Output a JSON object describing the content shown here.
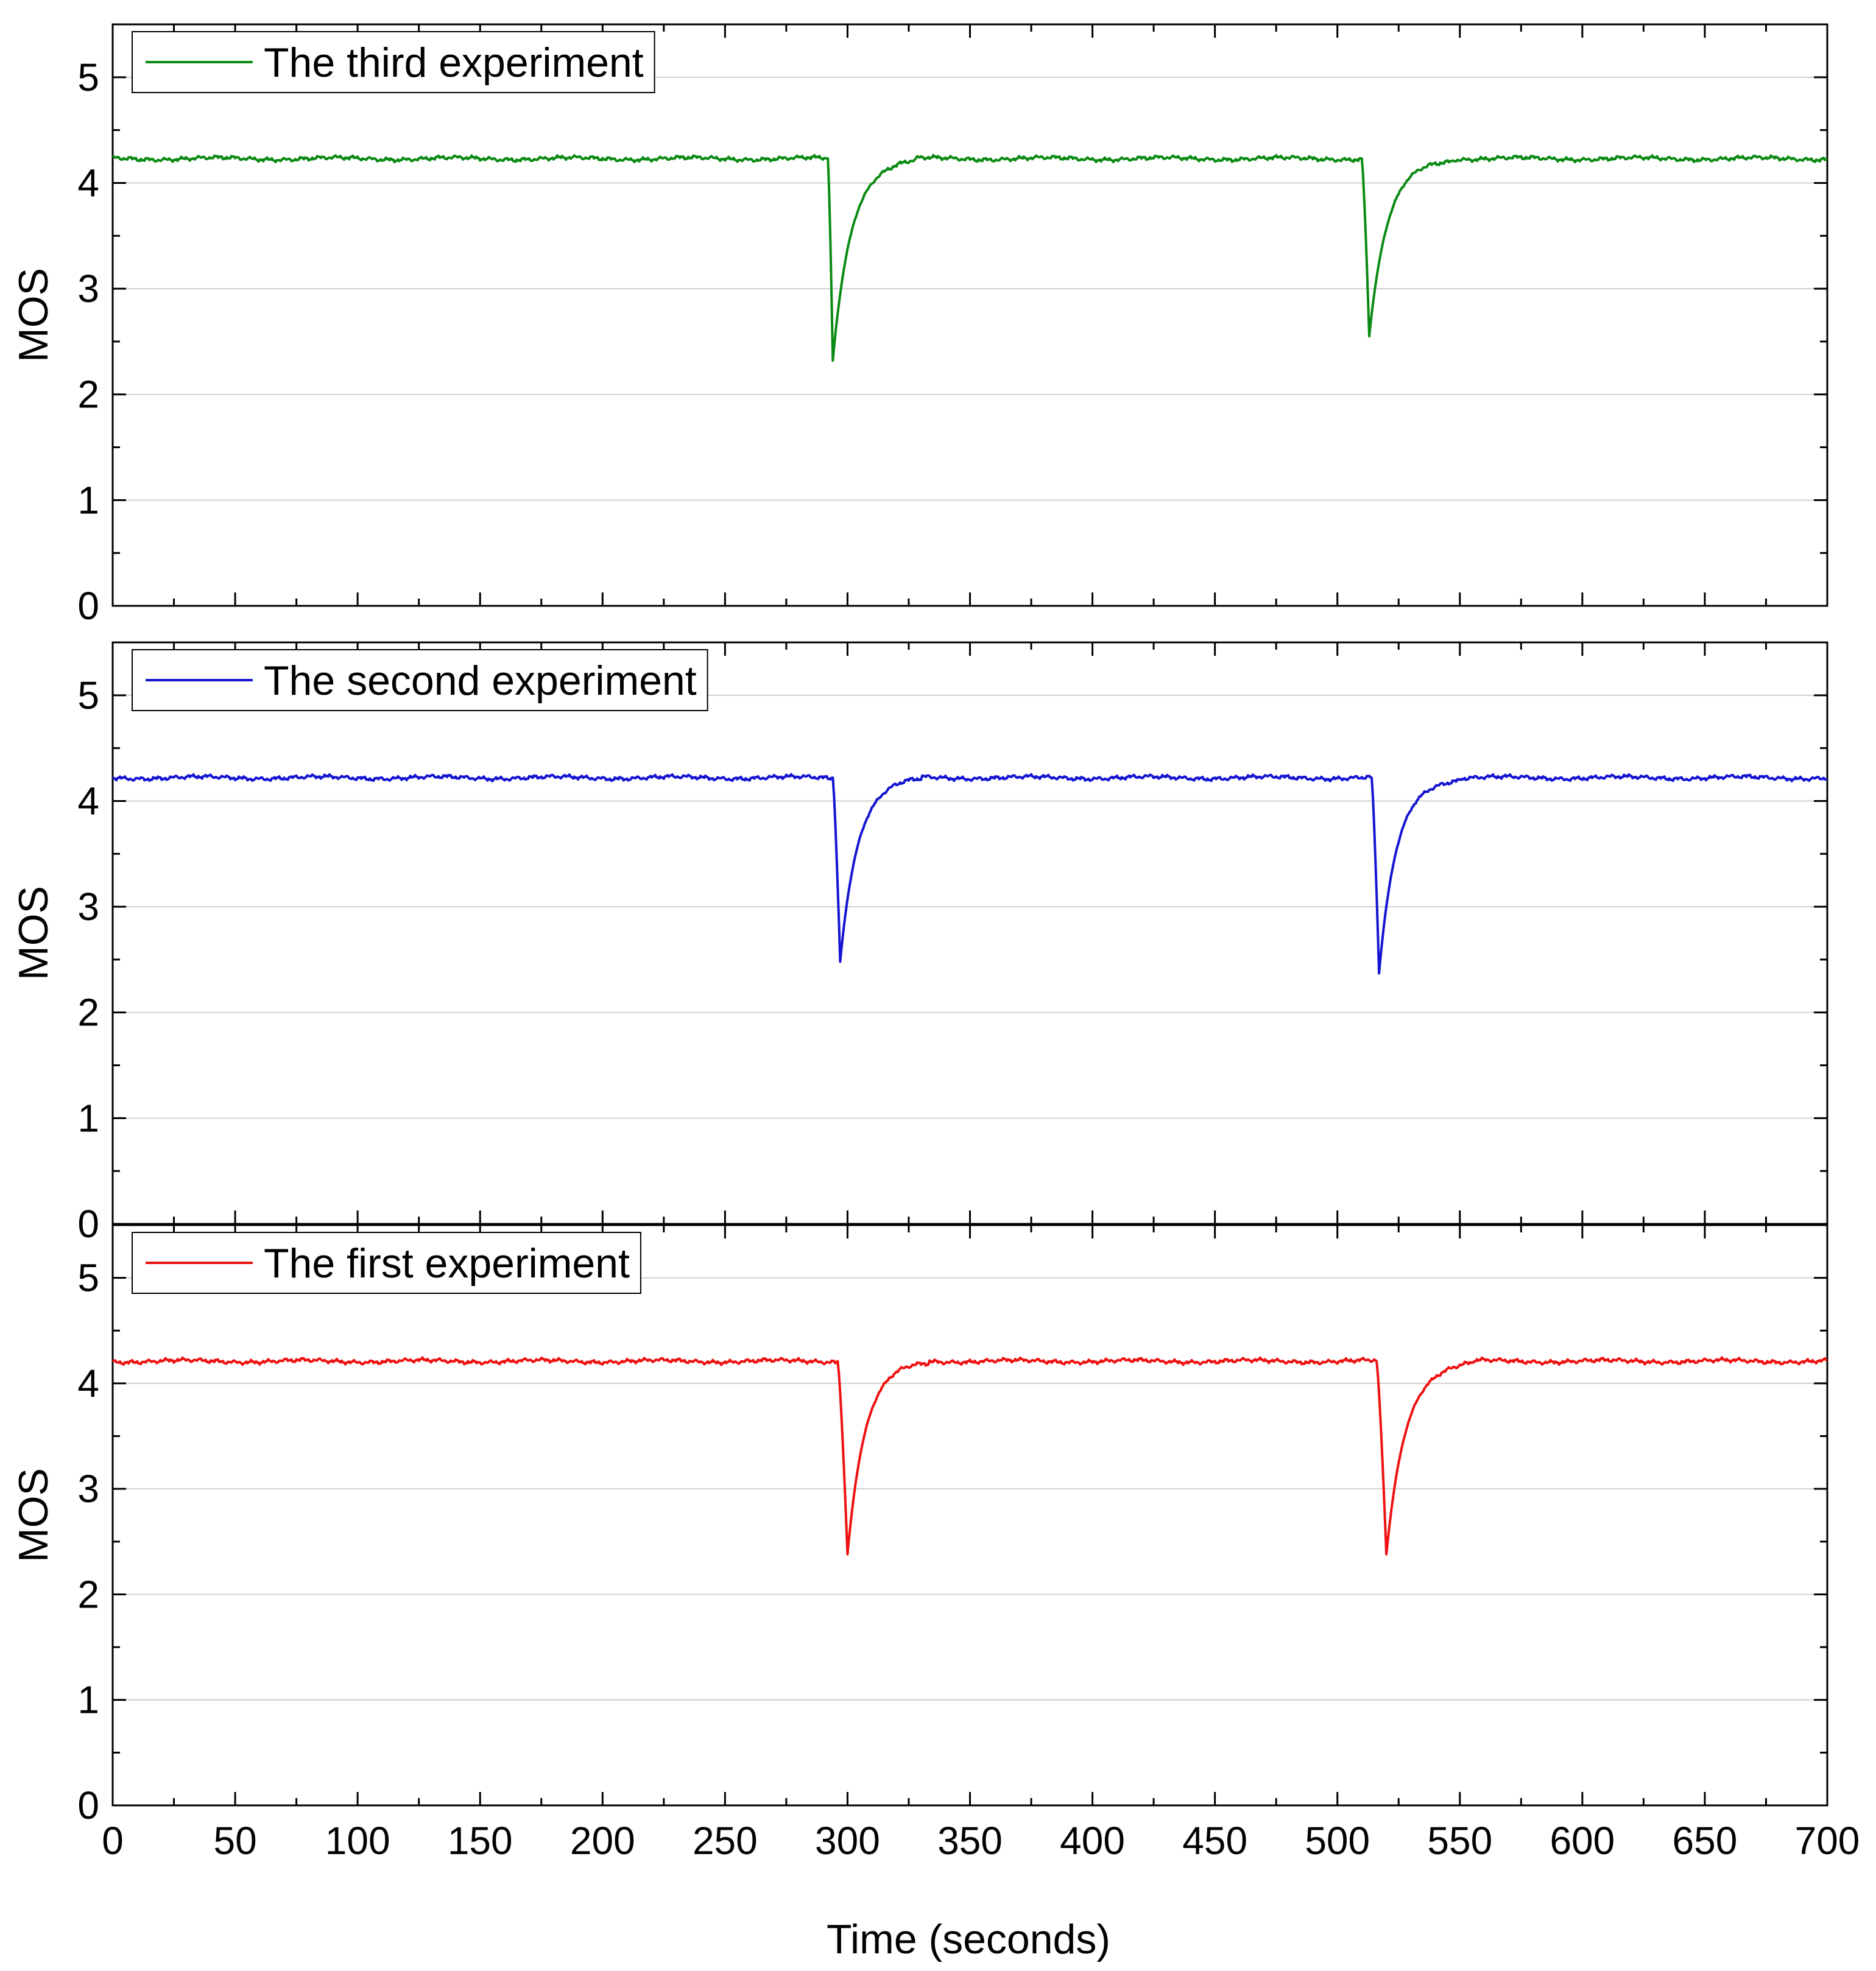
{
  "chart_data": {
    "type": "line",
    "xlabel": "Time (seconds)",
    "xlim": [
      0,
      700
    ],
    "x_ticks": [
      "0",
      "50",
      "100",
      "150",
      "200",
      "250",
      "300",
      "350",
      "400",
      "450",
      "500",
      "550",
      "600",
      "650",
      "700"
    ],
    "panels": [
      {
        "id": "third",
        "ylabel": "MOS",
        "ylim": [
          0,
          5.5
        ],
        "y_ticks": [
          "0",
          "1",
          "2",
          "3",
          "4",
          "5"
        ],
        "legend": "The third experiment",
        "color": "#0a8a12",
        "baseline": 4.23,
        "dips": [
          {
            "start": 292,
            "min_x": 294,
            "min_y": 2.32,
            "recovered_x": 318
          },
          {
            "start": 510,
            "min_x": 513,
            "min_y": 2.55,
            "recovered_x": 537
          }
        ]
      },
      {
        "id": "second",
        "ylabel": "MOS",
        "ylim": [
          0,
          5.5
        ],
        "y_ticks": [
          "0",
          "1",
          "2",
          "3",
          "4",
          "5"
        ],
        "legend": "The second experiment",
        "color": "#1414d2",
        "baseline": 4.22,
        "dips": [
          {
            "start": 294,
            "min_x": 297,
            "min_y": 2.48,
            "recovered_x": 320
          },
          {
            "start": 514,
            "min_x": 517,
            "min_y": 2.37,
            "recovered_x": 540
          }
        ]
      },
      {
        "id": "first",
        "ylabel": "MOS",
        "ylim": [
          0,
          5.5
        ],
        "y_ticks": [
          "0",
          "1",
          "2",
          "3",
          "4",
          "5"
        ],
        "legend": "The first experiment",
        "color": "#ee1111",
        "baseline": 4.21,
        "dips": [
          {
            "start": 296,
            "min_x": 300,
            "min_y": 2.38,
            "recovered_x": 323
          },
          {
            "start": 516,
            "min_x": 520,
            "min_y": 2.38,
            "recovered_x": 545
          }
        ]
      }
    ]
  }
}
